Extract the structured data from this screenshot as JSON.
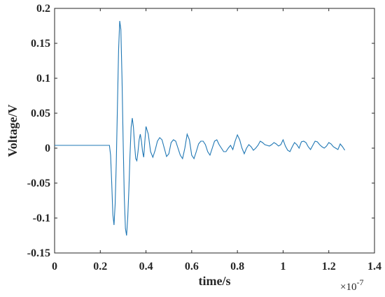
{
  "chart_data": {
    "type": "line",
    "title": "",
    "xlabel": "time/s",
    "ylabel": "Voltage/V",
    "x_multiplier_label": "×10",
    "x_multiplier_exponent": "-7",
    "xlim": [
      0,
      1.4
    ],
    "ylim": [
      -0.15,
      0.2
    ],
    "x_ticks": [
      "0",
      "0.2",
      "0.4",
      "0.6",
      "0.8",
      "1",
      "1.2",
      "1.4"
    ],
    "y_ticks": [
      "-0.15",
      "-0.1",
      "-0.05",
      "0",
      "0.05",
      "0.1",
      "0.15",
      "0.2"
    ],
    "grid": false,
    "legend": "none",
    "series_color": "#1f77b4",
    "series": [
      {
        "x": [
          0,
          0.05,
          0.1,
          0.15,
          0.2,
          0.22,
          0.24,
          0.245,
          0.25,
          0.255,
          0.26,
          0.265,
          0.27,
          0.275,
          0.28,
          0.285,
          0.29,
          0.295,
          0.3,
          0.305,
          0.31,
          0.315,
          0.32,
          0.325,
          0.33,
          0.335,
          0.34,
          0.345,
          0.35,
          0.355,
          0.36,
          0.365,
          0.37,
          0.375,
          0.38,
          0.385,
          0.39,
          0.395,
          0.4,
          0.41,
          0.42,
          0.43,
          0.44,
          0.45,
          0.46,
          0.47,
          0.48,
          0.49,
          0.5,
          0.51,
          0.52,
          0.53,
          0.54,
          0.55,
          0.56,
          0.57,
          0.58,
          0.59,
          0.6,
          0.61,
          0.62,
          0.63,
          0.64,
          0.65,
          0.66,
          0.67,
          0.68,
          0.69,
          0.7,
          0.71,
          0.72,
          0.73,
          0.74,
          0.75,
          0.76,
          0.77,
          0.78,
          0.79,
          0.8,
          0.81,
          0.82,
          0.83,
          0.84,
          0.85,
          0.86,
          0.87,
          0.88,
          0.89,
          0.9,
          0.91,
          0.92,
          0.93,
          0.94,
          0.95,
          0.96,
          0.97,
          0.98,
          0.99,
          1.0,
          1.01,
          1.02,
          1.03,
          1.04,
          1.05,
          1.06,
          1.07,
          1.08,
          1.09,
          1.1,
          1.11,
          1.12,
          1.13,
          1.14,
          1.15,
          1.16,
          1.17,
          1.18,
          1.19,
          1.2,
          1.21,
          1.22,
          1.23,
          1.24,
          1.25,
          1.26,
          1.27
        ],
        "y": [
          0.004,
          0.004,
          0.004,
          0.004,
          0.004,
          0.004,
          0.004,
          -0.01,
          -0.05,
          -0.095,
          -0.11,
          -0.08,
          -0.02,
          0.06,
          0.14,
          0.182,
          0.17,
          0.1,
          0.01,
          -0.07,
          -0.115,
          -0.125,
          -0.1,
          -0.06,
          -0.01,
          0.03,
          0.043,
          0.03,
          0.005,
          -0.015,
          -0.018,
          -0.005,
          0.012,
          0.02,
          0.01,
          -0.005,
          -0.013,
          0.01,
          0.031,
          0.02,
          -0.005,
          -0.013,
          -0.003,
          0.01,
          0.015,
          0.012,
          0.0,
          -0.012,
          -0.008,
          0.008,
          0.012,
          0.01,
          0.0,
          -0.01,
          -0.015,
          0.0,
          0.02,
          0.012,
          -0.01,
          -0.015,
          -0.005,
          0.006,
          0.01,
          0.01,
          0.005,
          -0.005,
          -0.01,
          0.0,
          0.01,
          0.012,
          0.005,
          0.0,
          -0.005,
          -0.005,
          0.0,
          0.004,
          -0.002,
          0.01,
          0.019,
          0.012,
          0.0,
          -0.008,
          0.0,
          0.005,
          0.002,
          -0.003,
          0.0,
          0.004,
          0.01,
          0.008,
          0.005,
          0.004,
          0.003,
          0.005,
          0.008,
          0.006,
          0.003,
          0.005,
          0.012,
          0.003,
          -0.003,
          -0.005,
          0.002,
          0.008,
          0.005,
          0.0,
          0.009,
          0.01,
          0.008,
          0.002,
          -0.002,
          0.004,
          0.01,
          0.009,
          0.005,
          0.002,
          0.0,
          0.003,
          0.008,
          0.006,
          0.002,
          0.0,
          -0.002,
          0.006,
          0.002,
          -0.003
        ]
      }
    ]
  }
}
